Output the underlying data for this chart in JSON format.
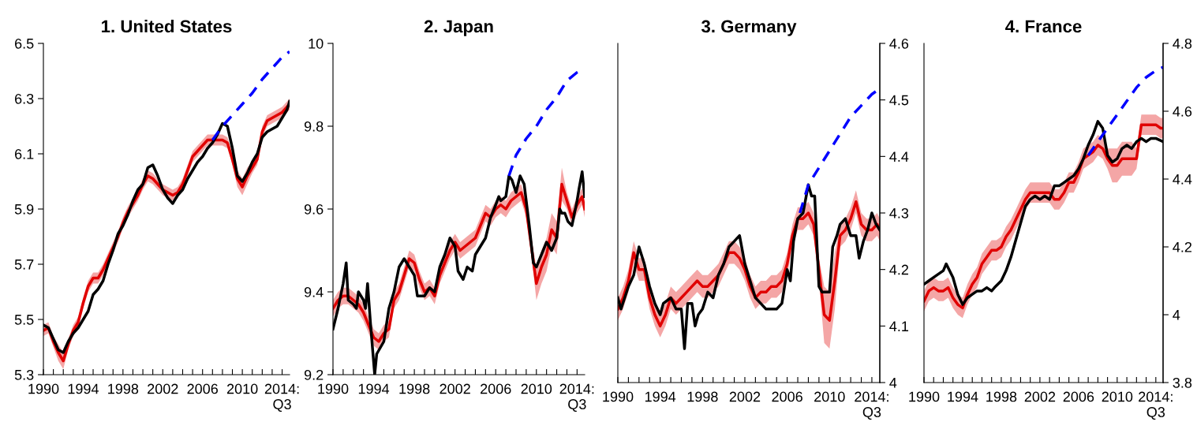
{
  "chart_data": [
    {
      "type": "line",
      "title": "1. United States",
      "xlim": [
        1990,
        2014.75
      ],
      "xticks": [
        {
          "value": 1990,
          "label": "1990"
        },
        {
          "value": 1991,
          "label": null
        },
        {
          "value": 1992,
          "label": null
        },
        {
          "value": 1993,
          "label": null
        },
        {
          "value": 1994,
          "label": "1994"
        },
        {
          "value": 1995,
          "label": null
        },
        {
          "value": 1996,
          "label": null
        },
        {
          "value": 1997,
          "label": null
        },
        {
          "value": 1998,
          "label": "1998"
        },
        {
          "value": 1999,
          "label": null
        },
        {
          "value": 2000,
          "label": null
        },
        {
          "value": 2001,
          "label": null
        },
        {
          "value": 2002,
          "label": "2002"
        },
        {
          "value": 2003,
          "label": null
        },
        {
          "value": 2004,
          "label": null
        },
        {
          "value": 2005,
          "label": null
        },
        {
          "value": 2006,
          "label": "2006"
        },
        {
          "value": 2007,
          "label": null
        },
        {
          "value": 2008,
          "label": null
        },
        {
          "value": 2009,
          "label": null
        },
        {
          "value": 2010,
          "label": "2010"
        },
        {
          "value": 2011,
          "label": null
        },
        {
          "value": 2012,
          "label": null
        },
        {
          "value": 2013,
          "label": null
        },
        {
          "value": 2014,
          "label": "2014:\nQ3"
        }
      ],
      "ylim": [
        5.3,
        6.5
      ],
      "yticks": [
        5.3,
        5.5,
        5.7,
        5.9,
        6.1,
        6.3,
        6.5
      ],
      "x": [
        1990,
        1990.5,
        1991,
        1991.5,
        1992,
        1992.5,
        1993,
        1993.5,
        1994,
        1994.5,
        1995,
        1995.5,
        1996,
        1996.5,
        1997,
        1997.5,
        1998,
        1998.5,
        1999,
        1999.5,
        2000,
        2000.5,
        2001,
        2001.5,
        2002,
        2002.5,
        2003,
        2003.5,
        2004,
        2004.5,
        2005,
        2005.5,
        2006,
        2006.5,
        2007,
        2007.5,
        2008,
        2008.5,
        2009,
        2009.5,
        2010,
        2010.5,
        2011,
        2011.5,
        2012,
        2012.5,
        2013,
        2013.5,
        2014,
        2014.5,
        2014.75
      ],
      "series": [
        {
          "color": "#e00000",
          "values": [
            5.46,
            5.47,
            5.42,
            5.38,
            5.35,
            5.41,
            5.46,
            5.49,
            5.56,
            5.62,
            5.65,
            5.65,
            5.68,
            5.72,
            5.76,
            5.8,
            5.85,
            5.89,
            5.92,
            5.95,
            5.99,
            6.02,
            6.01,
            5.99,
            5.97,
            5.96,
            5.95,
            5.96,
            5.99,
            6.04,
            6.09,
            6.11,
            6.13,
            6.15,
            6.15,
            6.15,
            6.15,
            6.14,
            6.08,
            6.01,
            5.98,
            6.02,
            6.05,
            6.08,
            6.18,
            6.22,
            6.23,
            6.24,
            6.25,
            6.27,
            6.28
          ],
          "lower": [
            5.44,
            5.45,
            5.4,
            5.35,
            5.32,
            5.39,
            5.44,
            5.47,
            5.54,
            5.6,
            5.63,
            5.63,
            5.66,
            5.7,
            5.74,
            5.78,
            5.83,
            5.87,
            5.9,
            5.93,
            5.97,
            6.0,
            5.99,
            5.97,
            5.95,
            5.94,
            5.93,
            5.94,
            5.97,
            6.02,
            6.07,
            6.09,
            6.11,
            6.13,
            6.13,
            6.13,
            6.13,
            6.12,
            6.06,
            5.98,
            5.95,
            5.99,
            6.03,
            6.06,
            6.16,
            6.2,
            6.21,
            6.22,
            6.23,
            6.25,
            6.26
          ],
          "upper": [
            5.48,
            5.49,
            5.44,
            5.41,
            5.38,
            5.43,
            5.48,
            5.51,
            5.58,
            5.64,
            5.67,
            5.67,
            5.7,
            5.74,
            5.78,
            5.82,
            5.87,
            5.91,
            5.94,
            5.97,
            6.01,
            6.04,
            6.03,
            6.01,
            5.99,
            5.98,
            5.97,
            5.98,
            6.01,
            6.06,
            6.11,
            6.13,
            6.15,
            6.17,
            6.17,
            6.17,
            6.17,
            6.16,
            6.1,
            6.04,
            6.01,
            6.05,
            6.07,
            6.1,
            6.2,
            6.24,
            6.25,
            6.26,
            6.27,
            6.29,
            6.3
          ]
        },
        {
          "color": "#000000",
          "values": [
            5.48,
            5.47,
            5.43,
            5.39,
            5.38,
            5.42,
            5.45,
            5.47,
            5.5,
            5.53,
            5.59,
            5.61,
            5.64,
            5.7,
            5.75,
            5.81,
            5.84,
            5.88,
            5.93,
            5.97,
            5.99,
            6.05,
            6.06,
            6.02,
            5.97,
            5.94,
            5.92,
            5.95,
            5.97,
            6.01,
            6.04,
            6.07,
            6.09,
            6.12,
            6.14,
            6.17,
            6.21,
            6.2,
            6.12,
            6.02,
            6.0,
            6.03,
            6.07,
            6.1,
            6.16,
            6.18,
            6.19,
            6.2,
            6.23,
            6.26,
            6.29
          ]
        },
        {
          "color": "#0000ff",
          "line_style": "dashed",
          "x": [
            2007,
            2008,
            2009,
            2010,
            2011,
            2012,
            2013,
            2014,
            2014.75
          ],
          "values": [
            6.15,
            6.2,
            6.24,
            6.28,
            6.32,
            6.37,
            6.41,
            6.45,
            6.47
          ]
        }
      ]
    },
    {
      "type": "line",
      "title": "2. Japan",
      "xlim": [
        1990,
        2014.75
      ],
      "xticks": [
        {
          "value": 1990,
          "label": "1990"
        },
        {
          "value": 1991,
          "label": null
        },
        {
          "value": 1992,
          "label": null
        },
        {
          "value": 1993,
          "label": null
        },
        {
          "value": 1994,
          "label": "1994"
        },
        {
          "value": 1995,
          "label": null
        },
        {
          "value": 1996,
          "label": null
        },
        {
          "value": 1997,
          "label": null
        },
        {
          "value": 1998,
          "label": "1998"
        },
        {
          "value": 1999,
          "label": null
        },
        {
          "value": 2000,
          "label": null
        },
        {
          "value": 2001,
          "label": null
        },
        {
          "value": 2002,
          "label": "2002"
        },
        {
          "value": 2003,
          "label": null
        },
        {
          "value": 2004,
          "label": null
        },
        {
          "value": 2005,
          "label": null
        },
        {
          "value": 2006,
          "label": "2006"
        },
        {
          "value": 2007,
          "label": null
        },
        {
          "value": 2008,
          "label": null
        },
        {
          "value": 2009,
          "label": null
        },
        {
          "value": 2010,
          "label": "2010"
        },
        {
          "value": 2011,
          "label": null
        },
        {
          "value": 2012,
          "label": null
        },
        {
          "value": 2013,
          "label": null
        },
        {
          "value": 2014,
          "label": "2014:\nQ3"
        }
      ],
      "ylim": [
        9.2,
        10
      ],
      "yticks": [
        9.2,
        9.4,
        9.6,
        9.8,
        10
      ],
      "x": [
        1990,
        1990.5,
        1991,
        1991.5,
        1992,
        1992.5,
        1993,
        1993.5,
        1994,
        1994.5,
        1995,
        1995.5,
        1996,
        1996.5,
        1997,
        1997.5,
        1998,
        1998.5,
        1999,
        1999.5,
        2000,
        2000.5,
        2001,
        2001.5,
        2002,
        2002.5,
        2003,
        2003.5,
        2004,
        2004.5,
        2005,
        2005.5,
        2006,
        2006.5,
        2007,
        2007.5,
        2008,
        2008.5,
        2009,
        2009.5,
        2010,
        2010.5,
        2011,
        2011.5,
        2012,
        2012.5,
        2013,
        2013.5,
        2014,
        2014.5,
        2014.75
      ],
      "series": [
        {
          "color": "#e00000",
          "values": [
            9.36,
            9.38,
            9.39,
            9.39,
            9.38,
            9.37,
            9.35,
            9.32,
            9.29,
            9.28,
            9.3,
            9.31,
            9.38,
            9.4,
            9.44,
            9.48,
            9.47,
            9.43,
            9.4,
            9.41,
            9.39,
            9.44,
            9.47,
            9.5,
            9.52,
            9.5,
            9.51,
            9.52,
            9.53,
            9.56,
            9.59,
            9.58,
            9.6,
            9.61,
            9.6,
            9.62,
            9.63,
            9.64,
            9.6,
            9.51,
            9.42,
            9.46,
            9.49,
            9.55,
            9.53,
            9.66,
            9.62,
            9.58,
            9.61,
            9.63,
            9.6
          ],
          "lower": [
            9.34,
            9.36,
            9.37,
            9.37,
            9.36,
            9.35,
            9.33,
            9.3,
            9.27,
            9.26,
            9.28,
            9.29,
            9.36,
            9.38,
            9.42,
            9.46,
            9.45,
            9.41,
            9.38,
            9.39,
            9.37,
            9.42,
            9.45,
            9.48,
            9.5,
            9.48,
            9.49,
            9.5,
            9.51,
            9.54,
            9.57,
            9.56,
            9.58,
            9.59,
            9.58,
            9.6,
            9.61,
            9.62,
            9.58,
            9.49,
            9.38,
            9.42,
            9.45,
            9.51,
            9.49,
            9.62,
            9.6,
            9.56,
            9.59,
            9.61,
            9.58
          ],
          "upper": [
            9.38,
            9.4,
            9.41,
            9.41,
            9.4,
            9.39,
            9.37,
            9.34,
            9.31,
            9.3,
            9.32,
            9.33,
            9.4,
            9.42,
            9.46,
            9.5,
            9.49,
            9.45,
            9.42,
            9.43,
            9.41,
            9.46,
            9.49,
            9.52,
            9.54,
            9.52,
            9.53,
            9.54,
            9.55,
            9.58,
            9.61,
            9.6,
            9.62,
            9.63,
            9.62,
            9.64,
            9.65,
            9.66,
            9.62,
            9.53,
            9.46,
            9.5,
            9.53,
            9.59,
            9.57,
            9.7,
            9.64,
            9.6,
            9.63,
            9.65,
            9.62
          ]
        },
        {
          "color": "#000000",
          "x": [
            1990,
            1990.5,
            1991,
            1991.3,
            1991.5,
            1992,
            1992.3,
            1992.5,
            1993,
            1993.2,
            1993.4,
            1993.7,
            1994.1,
            1994.3,
            1995,
            1995.5,
            1996,
            1996.5,
            1997,
            1997.5,
            1998,
            1998.3,
            1999,
            1999.5,
            2000,
            2000.5,
            2001,
            2001.5,
            2002,
            2002.3,
            2002.8,
            2003.2,
            2003.7,
            2004,
            2004.5,
            2005,
            2005.5,
            2006,
            2006.3,
            2006.5,
            2007,
            2007.3,
            2007.6,
            2008,
            2008.4,
            2008.8,
            2009.3,
            2009.7,
            2010,
            2010.5,
            2011,
            2011.5,
            2012,
            2012.3,
            2012.5,
            2012.8,
            2013.1,
            2013.5,
            2014,
            2014.2,
            2014.5,
            2014.75
          ],
          "values": [
            9.31,
            9.36,
            9.42,
            9.47,
            9.38,
            9.37,
            9.36,
            9.4,
            9.38,
            9.36,
            9.42,
            9.32,
            9.2,
            9.25,
            9.28,
            9.36,
            9.4,
            9.46,
            9.48,
            9.46,
            9.44,
            9.39,
            9.39,
            9.41,
            9.4,
            9.46,
            9.49,
            9.53,
            9.51,
            9.45,
            9.43,
            9.46,
            9.45,
            9.49,
            9.51,
            9.53,
            9.58,
            9.61,
            9.63,
            9.62,
            9.63,
            9.68,
            9.67,
            9.64,
            9.68,
            9.66,
            9.56,
            9.47,
            9.46,
            9.49,
            9.52,
            9.5,
            9.53,
            9.6,
            9.59,
            9.59,
            9.57,
            9.56,
            9.62,
            9.65,
            9.69,
            9.63
          ]
        },
        {
          "color": "#0000ff",
          "line_style": "dashed",
          "x": [
            2007.3,
            2008,
            2009,
            2010,
            2011,
            2012,
            2013,
            2014,
            2014.75
          ],
          "values": [
            9.68,
            9.73,
            9.77,
            9.8,
            9.84,
            9.87,
            9.91,
            9.93,
            9.94
          ]
        }
      ]
    },
    {
      "type": "line",
      "title": "3. Germany",
      "xlim": [
        1990,
        2014.75
      ],
      "xticks": [
        {
          "value": 1990,
          "label": "1990"
        },
        {
          "value": 1991,
          "label": null
        },
        {
          "value": 1992,
          "label": null
        },
        {
          "value": 1993,
          "label": null
        },
        {
          "value": 1994,
          "label": "1994"
        },
        {
          "value": 1995,
          "label": null
        },
        {
          "value": 1996,
          "label": null
        },
        {
          "value": 1997,
          "label": null
        },
        {
          "value": 1998,
          "label": "1998"
        },
        {
          "value": 1999,
          "label": null
        },
        {
          "value": 2000,
          "label": null
        },
        {
          "value": 2001,
          "label": null
        },
        {
          "value": 2002,
          "label": "2002"
        },
        {
          "value": 2003,
          "label": null
        },
        {
          "value": 2004,
          "label": null
        },
        {
          "value": 2005,
          "label": null
        },
        {
          "value": 2006,
          "label": "2006"
        },
        {
          "value": 2007,
          "label": null
        },
        {
          "value": 2008,
          "label": null
        },
        {
          "value": 2009,
          "label": null
        },
        {
          "value": 2010,
          "label": "2010"
        },
        {
          "value": 2011,
          "label": null
        },
        {
          "value": 2012,
          "label": null
        },
        {
          "value": 2013,
          "label": null
        },
        {
          "value": 2014,
          "label": "2014:\nQ3"
        }
      ],
      "y2lim": [
        4,
        4.6
      ],
      "y2ticks": [
        4,
        4.1,
        4.2,
        4.3,
        4.4,
        4.5,
        4.6
      ],
      "x": [
        1990,
        1990.5,
        1991,
        1991.5,
        1992,
        1992.5,
        1993,
        1993.5,
        1994,
        1994.5,
        1995,
        1995.5,
        1996,
        1996.5,
        1997,
        1997.5,
        1998,
        1998.5,
        1999,
        1999.5,
        2000,
        2000.5,
        2001,
        2001.5,
        2002,
        2002.5,
        2003,
        2003.5,
        2004,
        2004.5,
        2005,
        2005.5,
        2006,
        2006.5,
        2007,
        2007.5,
        2008,
        2008.5,
        2009,
        2009.5,
        2010,
        2010.5,
        2011,
        2011.5,
        2012,
        2012.5,
        2013,
        2013.5,
        2014,
        2014.5,
        2014.75
      ],
      "series": [
        {
          "color": "#e00000",
          "axis": "y2",
          "values": [
            4.13,
            4.15,
            4.18,
            4.23,
            4.2,
            4.2,
            4.15,
            4.12,
            4.1,
            4.12,
            4.15,
            4.14,
            4.15,
            4.16,
            4.17,
            4.18,
            4.17,
            4.17,
            4.18,
            4.19,
            4.21,
            4.23,
            4.23,
            4.22,
            4.2,
            4.17,
            4.15,
            4.16,
            4.16,
            4.17,
            4.17,
            4.18,
            4.21,
            4.26,
            4.29,
            4.29,
            4.3,
            4.28,
            4.2,
            4.12,
            4.11,
            4.18,
            4.26,
            4.27,
            4.29,
            4.32,
            4.28,
            4.27,
            4.27,
            4.28,
            4.27
          ],
          "lower": [
            4.11,
            4.13,
            4.16,
            4.21,
            4.18,
            4.18,
            4.13,
            4.1,
            4.08,
            4.1,
            4.13,
            4.12,
            4.13,
            4.14,
            4.15,
            4.16,
            4.15,
            4.15,
            4.16,
            4.17,
            4.19,
            4.21,
            4.21,
            4.2,
            4.18,
            4.15,
            4.13,
            4.14,
            4.14,
            4.15,
            4.15,
            4.16,
            4.19,
            4.24,
            4.27,
            4.27,
            4.28,
            4.26,
            4.18,
            4.07,
            4.06,
            4.13,
            4.24,
            4.25,
            4.27,
            4.3,
            4.26,
            4.25,
            4.25,
            4.26,
            4.25
          ],
          "upper": [
            4.15,
            4.17,
            4.2,
            4.25,
            4.22,
            4.22,
            4.17,
            4.14,
            4.12,
            4.14,
            4.17,
            4.16,
            4.17,
            4.18,
            4.19,
            4.2,
            4.19,
            4.19,
            4.2,
            4.21,
            4.23,
            4.25,
            4.25,
            4.24,
            4.22,
            4.19,
            4.17,
            4.18,
            4.18,
            4.19,
            4.19,
            4.2,
            4.23,
            4.28,
            4.31,
            4.31,
            4.32,
            4.3,
            4.22,
            4.17,
            4.16,
            4.23,
            4.28,
            4.29,
            4.31,
            4.34,
            4.3,
            4.29,
            4.29,
            4.3,
            4.29
          ]
        },
        {
          "color": "#000000",
          "axis": "y2",
          "x": [
            1990,
            1990.3,
            1991,
            1991.5,
            1992,
            1992.5,
            1993,
            1993.5,
            1994,
            1994.3,
            1995,
            1995.5,
            1996,
            1996.3,
            1996.6,
            1997,
            1997.3,
            1997.6,
            1998,
            1998.5,
            1999,
            1999.5,
            2000,
            2000.5,
            2001,
            2001.5,
            2002,
            2002.5,
            2003,
            2003.5,
            2004,
            2004.5,
            2005,
            2005.5,
            2006,
            2006.3,
            2006.6,
            2007,
            2007.5,
            2008,
            2008.3,
            2008.6,
            2009,
            2009.3,
            2009.7,
            2010,
            2010.3,
            2010.7,
            2011,
            2011.5,
            2012,
            2012.5,
            2012.8,
            2013.2,
            2013.6,
            2014,
            2014.4,
            2014.75
          ],
          "values": [
            4.15,
            4.13,
            4.17,
            4.19,
            4.24,
            4.21,
            4.17,
            4.14,
            4.12,
            4.14,
            4.15,
            4.13,
            4.13,
            4.06,
            4.14,
            4.14,
            4.1,
            4.12,
            4.13,
            4.16,
            4.15,
            4.19,
            4.21,
            4.24,
            4.25,
            4.26,
            4.21,
            4.18,
            4.15,
            4.14,
            4.13,
            4.13,
            4.13,
            4.14,
            4.2,
            4.18,
            4.25,
            4.29,
            4.3,
            4.35,
            4.33,
            4.33,
            4.17,
            4.16,
            4.16,
            4.16,
            4.24,
            4.26,
            4.28,
            4.29,
            4.26,
            4.26,
            4.22,
            4.25,
            4.27,
            4.3,
            4.28,
            4.27
          ]
        },
        {
          "color": "#0000ff",
          "axis": "y2",
          "line_style": "dashed",
          "x": [
            2007.2,
            2008,
            2009,
            2010,
            2011,
            2012,
            2013,
            2014,
            2014.75
          ],
          "values": [
            4.3,
            4.35,
            4.38,
            4.41,
            4.44,
            4.47,
            4.49,
            4.51,
            4.52
          ]
        }
      ]
    },
    {
      "type": "line",
      "title": "4. France",
      "xlim": [
        1990,
        2014.75
      ],
      "xticks": [
        {
          "value": 1990,
          "label": "1990"
        },
        {
          "value": 1991,
          "label": null
        },
        {
          "value": 1992,
          "label": null
        },
        {
          "value": 1993,
          "label": null
        },
        {
          "value": 1994,
          "label": "1994"
        },
        {
          "value": 1995,
          "label": null
        },
        {
          "value": 1996,
          "label": null
        },
        {
          "value": 1997,
          "label": null
        },
        {
          "value": 1998,
          "label": "1998"
        },
        {
          "value": 1999,
          "label": null
        },
        {
          "value": 2000,
          "label": null
        },
        {
          "value": 2001,
          "label": null
        },
        {
          "value": 2002,
          "label": "2002"
        },
        {
          "value": 2003,
          "label": null
        },
        {
          "value": 2004,
          "label": null
        },
        {
          "value": 2005,
          "label": null
        },
        {
          "value": 2006,
          "label": "2006"
        },
        {
          "value": 2007,
          "label": null
        },
        {
          "value": 2008,
          "label": null
        },
        {
          "value": 2009,
          "label": null
        },
        {
          "value": 2010,
          "label": "2010"
        },
        {
          "value": 2011,
          "label": null
        },
        {
          "value": 2012,
          "label": null
        },
        {
          "value": 2013,
          "label": null
        },
        {
          "value": 2014,
          "label": "2014:\nQ3"
        }
      ],
      "y2lim": [
        3.8,
        4.8
      ],
      "y2ticks": [
        3.8,
        4,
        4.2,
        4.4,
        4.6,
        4.8
      ],
      "x": [
        1990,
        1990.5,
        1991,
        1991.5,
        1992,
        1992.5,
        1993,
        1993.5,
        1994,
        1994.5,
        1995,
        1995.5,
        1996,
        1996.5,
        1997,
        1997.5,
        1998,
        1998.5,
        1999,
        1999.5,
        2000,
        2000.5,
        2001,
        2001.5,
        2002,
        2002.5,
        2003,
        2003.5,
        2004,
        2004.5,
        2005,
        2005.5,
        2006,
        2006.5,
        2007,
        2007.5,
        2008,
        2008.5,
        2009,
        2009.5,
        2010,
        2010.5,
        2011,
        2011.5,
        2012,
        2012.5,
        2013,
        2013.5,
        2014,
        2014.5,
        2014.75
      ],
      "series": [
        {
          "color": "#e00000",
          "axis": "y2",
          "values": [
            4.04,
            4.07,
            4.08,
            4.07,
            4.07,
            4.08,
            4.05,
            4.03,
            4.02,
            4.06,
            4.09,
            4.11,
            4.15,
            4.17,
            4.19,
            4.19,
            4.2,
            4.23,
            4.25,
            4.28,
            4.31,
            4.34,
            4.36,
            4.36,
            4.36,
            4.36,
            4.36,
            4.34,
            4.34,
            4.36,
            4.39,
            4.39,
            4.42,
            4.46,
            4.47,
            4.48,
            4.5,
            4.49,
            4.46,
            4.44,
            4.44,
            4.46,
            4.46,
            4.46,
            4.46,
            4.56,
            4.56,
            4.56,
            4.56,
            4.55,
            4.55
          ],
          "lower": [
            4.01,
            4.04,
            4.05,
            4.04,
            4.04,
            4.05,
            4.02,
            4.0,
            3.99,
            4.03,
            4.06,
            4.08,
            4.12,
            4.14,
            4.16,
            4.16,
            4.17,
            4.2,
            4.22,
            4.25,
            4.28,
            4.31,
            4.33,
            4.33,
            4.33,
            4.33,
            4.33,
            4.31,
            4.31,
            4.33,
            4.36,
            4.36,
            4.39,
            4.43,
            4.44,
            4.45,
            4.47,
            4.46,
            4.43,
            4.39,
            4.39,
            4.41,
            4.41,
            4.41,
            4.43,
            4.53,
            4.53,
            4.53,
            4.53,
            4.52,
            4.52
          ],
          "upper": [
            4.07,
            4.1,
            4.11,
            4.1,
            4.1,
            4.11,
            4.08,
            4.06,
            4.05,
            4.09,
            4.12,
            4.14,
            4.18,
            4.2,
            4.22,
            4.22,
            4.23,
            4.26,
            4.28,
            4.31,
            4.34,
            4.37,
            4.39,
            4.39,
            4.39,
            4.39,
            4.39,
            4.37,
            4.37,
            4.39,
            4.42,
            4.42,
            4.45,
            4.49,
            4.5,
            4.51,
            4.53,
            4.52,
            4.49,
            4.49,
            4.49,
            4.51,
            4.51,
            4.51,
            4.49,
            4.59,
            4.59,
            4.59,
            4.59,
            4.58,
            4.58
          ]
        },
        {
          "color": "#000000",
          "axis": "y2",
          "x": [
            1990,
            1990.5,
            1991,
            1991.5,
            1992,
            1992.3,
            1993,
            1993.5,
            1994,
            1994.5,
            1995,
            1995.5,
            1996,
            1996.5,
            1997,
            1997.3,
            1998,
            1998.5,
            1999,
            1999.5,
            2000,
            2000.5,
            2001,
            2001.5,
            2002,
            2002.5,
            2003,
            2003.5,
            2004,
            2004.5,
            2005,
            2005.5,
            2006,
            2006.5,
            2007,
            2007.5,
            2008,
            2008.5,
            2009,
            2009.5,
            2010,
            2010.5,
            2011,
            2011.5,
            2012,
            2012.5,
            2013,
            2013.5,
            2014,
            2014.75
          ],
          "values": [
            4.09,
            4.1,
            4.11,
            4.12,
            4.13,
            4.15,
            4.11,
            4.06,
            4.03,
            4.05,
            4.06,
            4.07,
            4.07,
            4.08,
            4.07,
            4.08,
            4.1,
            4.13,
            4.17,
            4.22,
            4.27,
            4.32,
            4.34,
            4.35,
            4.34,
            4.35,
            4.34,
            4.38,
            4.38,
            4.39,
            4.4,
            4.41,
            4.43,
            4.46,
            4.5,
            4.53,
            4.57,
            4.55,
            4.47,
            4.45,
            4.46,
            4.49,
            4.5,
            4.49,
            4.51,
            4.52,
            4.51,
            4.52,
            4.52,
            4.51
          ]
        },
        {
          "color": "#0000ff",
          "axis": "y2",
          "line_style": "dashed",
          "x": [
            2007,
            2008,
            2009,
            2010,
            2011,
            2012,
            2013,
            2014,
            2014.75
          ],
          "values": [
            4.47,
            4.51,
            4.55,
            4.59,
            4.63,
            4.67,
            4.7,
            4.72,
            4.73
          ]
        }
      ]
    }
  ]
}
